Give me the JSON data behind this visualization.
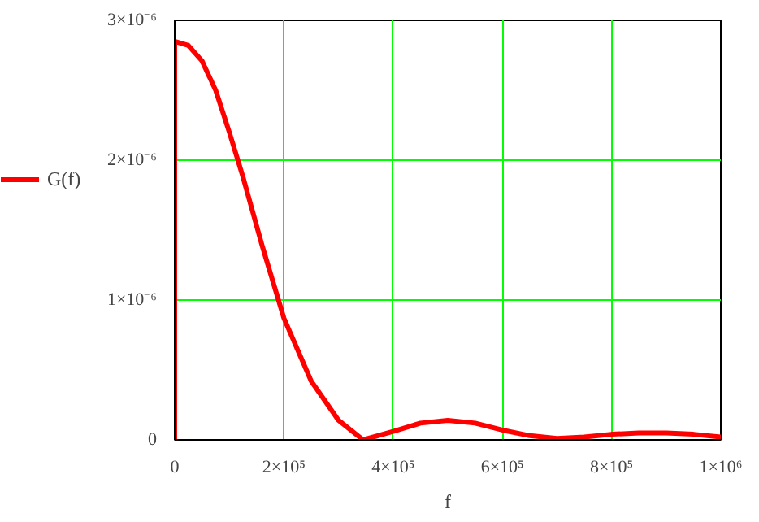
{
  "chart_data": {
    "type": "line",
    "xlabel": "f",
    "series": [
      {
        "name": "G(f)",
        "color": "#ff0000",
        "x": [
          0,
          0,
          25000,
          50000,
          75000,
          100000,
          125000,
          160000,
          200000,
          250000,
          300000,
          345000,
          400000,
          450000,
          500000,
          550000,
          600000,
          650000,
          700000,
          750000,
          800000,
          850000,
          900000,
          950000,
          1000000
        ],
        "values": [
          0,
          2.85e-06,
          2.82e-06,
          2.71e-06,
          2.5e-06,
          2.2e-06,
          1.88e-06,
          1.39e-06,
          8.7e-07,
          4.2e-07,
          1.4e-07,
          0.0,
          6e-08,
          1.2e-07,
          1.4e-07,
          1.2e-07,
          7e-08,
          3e-08,
          1e-08,
          2e-08,
          4e-08,
          5e-08,
          5e-08,
          4e-08,
          2e-08
        ]
      }
    ],
    "xlim": [
      0,
      1000000
    ],
    "ylim": [
      0,
      3e-06
    ],
    "xticks": [
      0,
      {
        "value": 200000,
        "label": "2×10⁵"
      },
      {
        "value": 400000,
        "label": "4×10⁵"
      },
      {
        "value": 600000,
        "label": "6×10⁵"
      },
      {
        "value": 800000,
        "label": "8×10⁵"
      },
      {
        "value": 1000000,
        "label": "1×10⁶"
      }
    ],
    "yticks": [
      0,
      {
        "value": 1e-06,
        "label": "1×10⁻⁶"
      },
      {
        "value": 2e-06,
        "label": "2×10⁻⁶"
      },
      {
        "value": 3e-06,
        "label": "3×10⁻⁶"
      }
    ],
    "grid": true,
    "legend": "left",
    "marker": "none",
    "line_style": "solid"
  }
}
